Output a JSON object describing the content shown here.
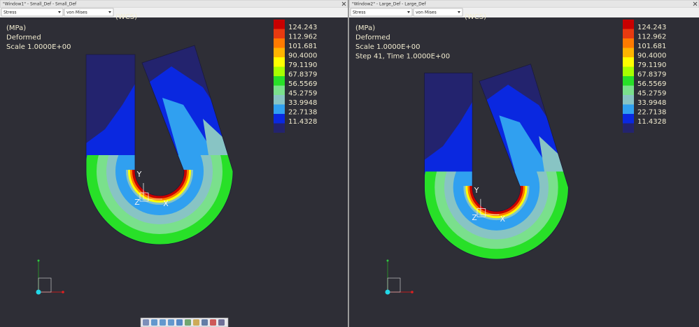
{
  "windows": [
    {
      "title": "\"Window1\" - Small_Def - Small_Def",
      "dropdowns": [
        "Stress",
        "von Mises"
      ],
      "coord": "(WCS)",
      "info": [
        "(MPa)",
        "Deformed",
        "Scale  1.0000E+00"
      ],
      "axes": [
        "Y",
        "Z",
        "X"
      ],
      "legend": {
        "colors": [
          "#c80000",
          "#e83a10",
          "#ff7a00",
          "#ffb400",
          "#ffff00",
          "#a8ff00",
          "#28e028",
          "#7ae08c",
          "#88c4c4",
          "#30a0f0",
          "#0a28e0",
          "#23236e"
        ],
        "labels": [
          "124.243",
          "112.962",
          "101.681",
          "90.4000",
          "79.1190",
          "67.8379",
          "56.5569",
          "45.2759",
          "33.9948",
          "22.7138",
          "11.4328"
        ]
      }
    },
    {
      "title": "\"Window2\" - Large_Def - Large_Def",
      "dropdowns": [
        "Stress",
        "von Mises"
      ],
      "coord": "(WCS)",
      "info": [
        "(MPa)",
        "Deformed",
        "Scale  1.0000E+00",
        "Step 41, Time  1.0000E+00"
      ],
      "axes": [
        "Y",
        "Z",
        "X"
      ],
      "legend": {
        "colors": [
          "#c80000",
          "#e83a10",
          "#ff7a00",
          "#ffb400",
          "#ffff00",
          "#a8ff00",
          "#28e028",
          "#7ae08c",
          "#88c4c4",
          "#30a0f0",
          "#0a28e0",
          "#23236e"
        ],
        "labels": [
          "124.243",
          "112.962",
          "101.681",
          "90.4000",
          "79.1190",
          "67.8379",
          "56.5569",
          "45.2759",
          "33.9948",
          "22.7138",
          "11.4328"
        ]
      }
    }
  ]
}
